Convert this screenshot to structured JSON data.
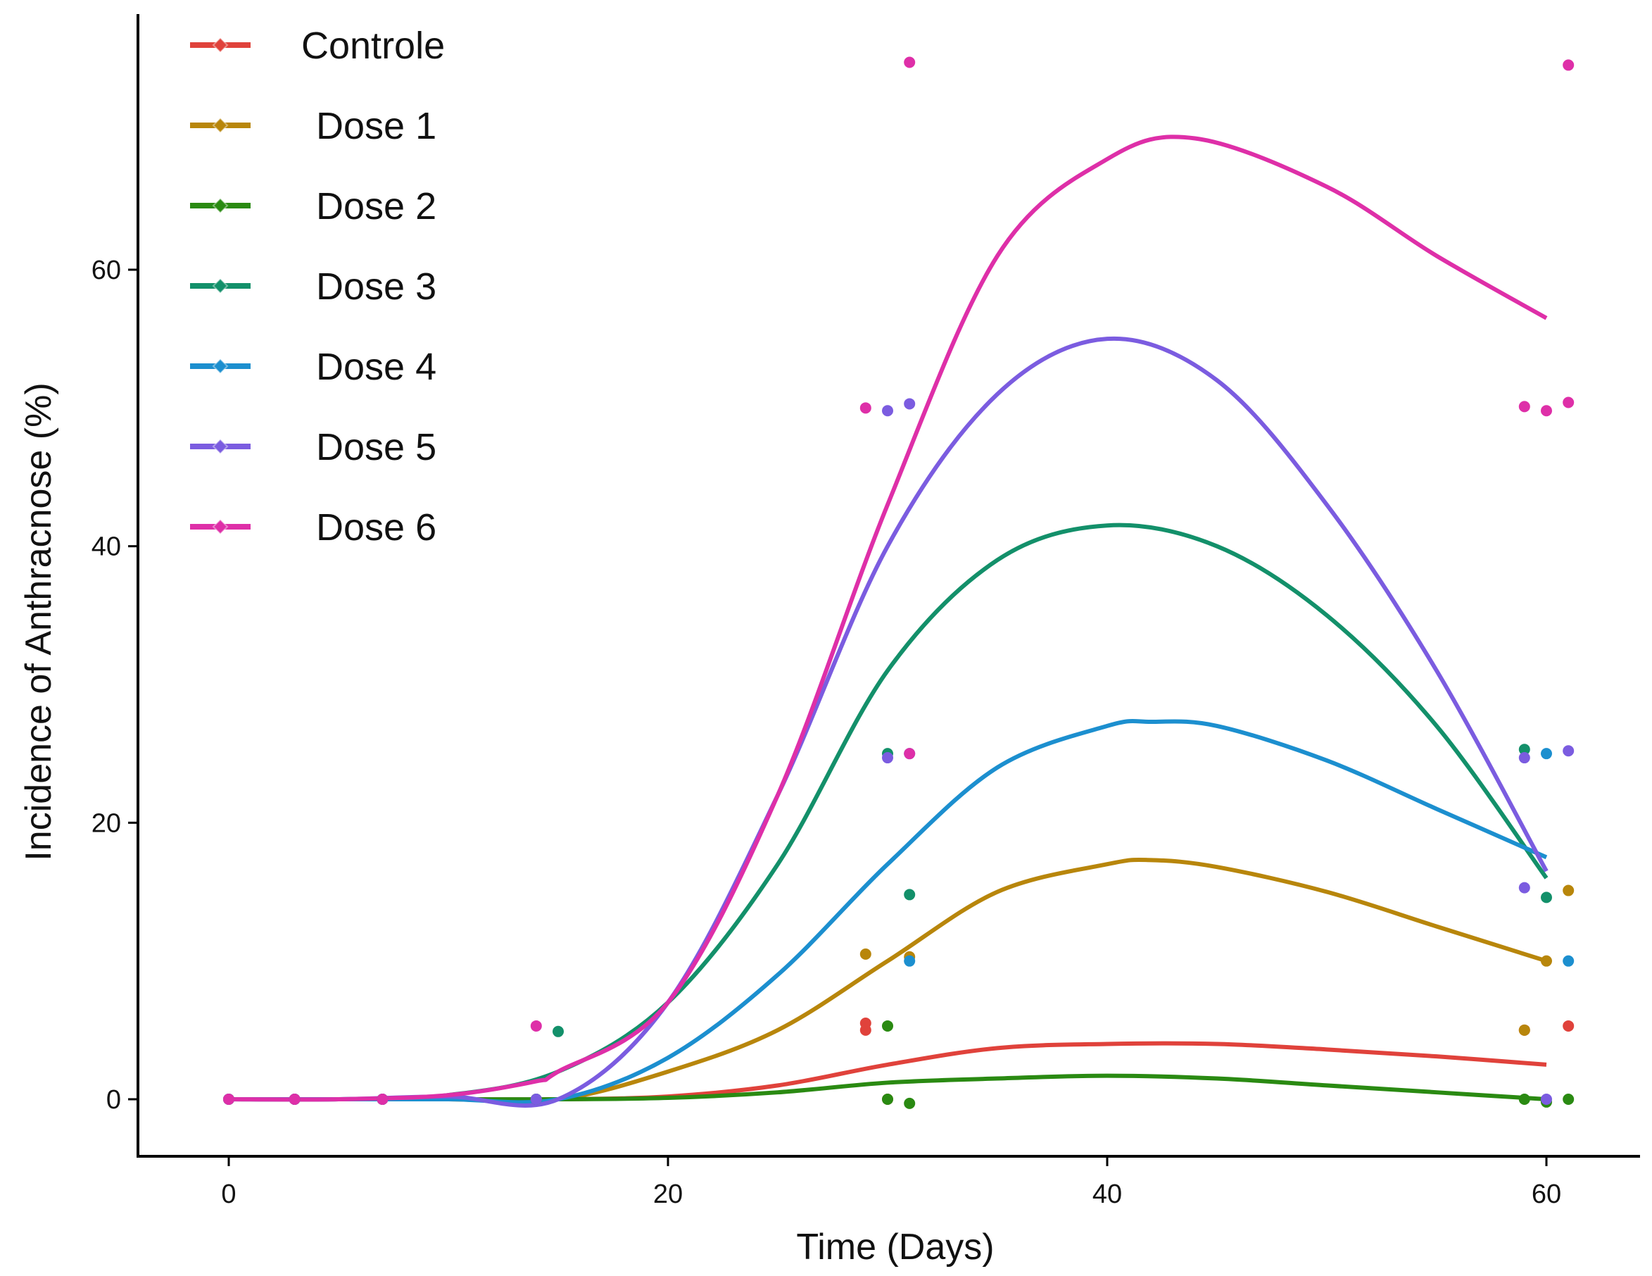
{
  "chart_data": {
    "type": "line",
    "title": "",
    "xlabel": "Time (Days)",
    "ylabel": "Incidence of Anthracnose (%)",
    "xlim": [
      -3,
      63
    ],
    "ylim": [
      -4,
      79
    ],
    "xticks": [
      0,
      20,
      40,
      60
    ],
    "yticks": [
      0,
      20,
      40,
      60
    ],
    "xtick_labels": [
      "0",
      "20",
      "40",
      "60"
    ],
    "ytick_labels": [
      "0",
      "20",
      "40",
      "60"
    ],
    "grid": false,
    "legend_position": "top-left",
    "series": [
      {
        "name": "Controle",
        "color": "#e0423b",
        "curve": {
          "x": [
            0,
            5,
            10,
            15,
            20,
            25,
            30,
            35,
            40,
            45,
            50,
            55,
            60
          ],
          "y": [
            0,
            0,
            0,
            0,
            0.2,
            1,
            2.5,
            3.7,
            4,
            4,
            3.6,
            3.1,
            2.5
          ]
        },
        "points": {
          "x": [
            0,
            3,
            7,
            14,
            29,
            29,
            30,
            59,
            61
          ],
          "y": [
            0,
            0,
            0,
            0,
            5,
            5.5,
            0,
            5,
            5.3
          ]
        }
      },
      {
        "name": "Dose 1",
        "color": "#b8860b",
        "curve": {
          "x": [
            0,
            5,
            10,
            15,
            20,
            25,
            30,
            35,
            40,
            42,
            45,
            50,
            55,
            60
          ],
          "y": [
            0,
            0,
            0,
            0,
            2,
            5,
            10,
            15,
            17,
            17.3,
            16.8,
            15,
            12.5,
            10
          ]
        },
        "points": {
          "x": [
            0,
            3,
            7,
            14,
            29,
            31,
            60,
            61,
            59
          ],
          "y": [
            0,
            0,
            0,
            0,
            10.5,
            10.3,
            10,
            15.1,
            5
          ]
        }
      },
      {
        "name": "Dose 2",
        "color": "#2a8a12",
        "curve": {
          "x": [
            0,
            5,
            10,
            15,
            20,
            25,
            30,
            35,
            40,
            45,
            50,
            55,
            60
          ],
          "y": [
            0,
            0,
            0,
            0,
            0.1,
            0.5,
            1.2,
            1.5,
            1.7,
            1.5,
            1,
            0.5,
            0
          ]
        },
        "points": {
          "x": [
            0,
            3,
            7,
            14,
            30,
            30,
            31,
            59,
            60,
            61
          ],
          "y": [
            0,
            0,
            0,
            0,
            5.3,
            0,
            -0.3,
            0,
            -0.2,
            0
          ]
        }
      },
      {
        "name": "Dose 3",
        "color": "#13906a",
        "curve": {
          "x": [
            0,
            5,
            10,
            15,
            20,
            25,
            30,
            35,
            40,
            45,
            50,
            55,
            60
          ],
          "y": [
            0,
            0,
            0.3,
            2,
            7,
            17,
            31,
            39,
            41.5,
            40,
            35,
            27,
            16
          ]
        },
        "points": {
          "x": [
            0,
            3,
            7,
            15,
            30,
            31,
            59,
            60
          ],
          "y": [
            0,
            0,
            0,
            4.9,
            25,
            14.8,
            25.3,
            14.6
          ]
        }
      },
      {
        "name": "Dose 4",
        "color": "#1c8fcf",
        "curve": {
          "x": [
            0,
            5,
            10,
            15,
            20,
            25,
            30,
            35,
            40,
            42,
            45,
            50,
            55,
            60
          ],
          "y": [
            0,
            0,
            0,
            0,
            3,
            9,
            17,
            24,
            27,
            27.3,
            27,
            24.5,
            21,
            17.5
          ]
        },
        "points": {
          "x": [
            0,
            3,
            7,
            14,
            31,
            31,
            60,
            61
          ],
          "y": [
            0,
            0,
            0,
            0,
            25,
            10,
            25,
            10
          ]
        }
      },
      {
        "name": "Dose 5",
        "color": "#7b5ce0",
        "curve": {
          "x": [
            0,
            5,
            10,
            15,
            20,
            25,
            30,
            35,
            40,
            45,
            50,
            55,
            60
          ],
          "y": [
            0,
            0,
            0.2,
            0,
            7,
            22,
            40,
            51,
            55,
            52,
            43,
            31,
            16.5
          ]
        },
        "points": {
          "x": [
            0,
            3,
            7,
            14,
            30,
            31,
            30,
            59,
            59,
            61,
            60
          ],
          "y": [
            0,
            0,
            0,
            0,
            49.8,
            50.3,
            24.7,
            24.7,
            15.3,
            25.2,
            0
          ]
        }
      },
      {
        "name": "Dose 6",
        "color": "#de2fa8",
        "curve": {
          "x": [
            0,
            5,
            10,
            14,
            15,
            20,
            25,
            30,
            35,
            40,
            44,
            50,
            55,
            60
          ],
          "y": [
            0,
            0,
            0.3,
            1.3,
            2,
            7,
            22,
            43,
            61,
            68,
            69.5,
            66,
            61,
            56.5
          ]
        },
        "points": {
          "x": [
            0,
            3,
            7,
            14,
            29,
            31,
            31,
            59,
            60,
            61,
            61
          ],
          "y": [
            0,
            0,
            0,
            5.3,
            50,
            75,
            25,
            50.1,
            49.8,
            50.4,
            74.8
          ]
        }
      }
    ]
  }
}
